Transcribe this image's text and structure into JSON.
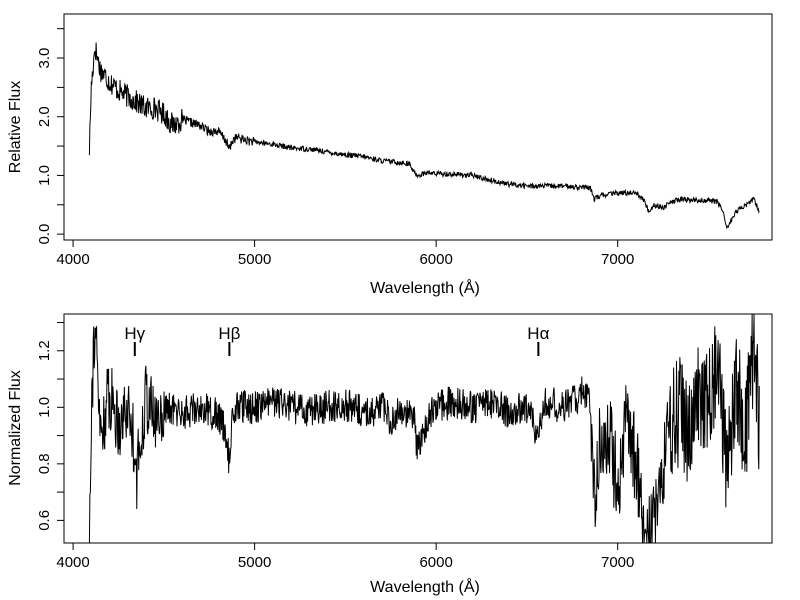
{
  "chart_data": [
    {
      "type": "line",
      "title": "",
      "xlabel": "Wavelength (Å)",
      "ylabel": "Relative Flux",
      "xlim": [
        3950,
        7850
      ],
      "ylim": [
        -0.1,
        3.75
      ],
      "xticks": [
        4000,
        5000,
        6000,
        7000
      ],
      "xtick_labels": [
        "4000",
        "5000",
        "6000",
        "7000"
      ],
      "yticks": [
        0,
        1,
        2,
        3
      ],
      "ytick_labels": [
        "0.0",
        "1.0",
        "2.0",
        "3.0"
      ],
      "grid": false,
      "legend": "none",
      "series": [
        {
          "color": "#000000",
          "x": [
            4090,
            4100,
            4120,
            4150,
            4200,
            4250,
            4300,
            4350,
            4400,
            4450,
            4500,
            4550,
            4600,
            4650,
            4700,
            4750,
            4800,
            4840,
            4860,
            4880,
            4900,
            4950,
            5000,
            5100,
            5200,
            5300,
            5400,
            5500,
            5600,
            5700,
            5800,
            5850,
            5880,
            5900,
            5950,
            6000,
            6100,
            6200,
            6300,
            6400,
            6500,
            6600,
            6700,
            6800,
            6850,
            6870,
            6900,
            6950,
            7000,
            7050,
            7100,
            7150,
            7170,
            7200,
            7250,
            7300,
            7350,
            7400,
            7450,
            7500,
            7550,
            7580,
            7600,
            7620,
            7650,
            7700,
            7750,
            7780
          ],
          "y": [
            1.45,
            2.5,
            3.2,
            2.8,
            2.6,
            2.45,
            2.35,
            2.25,
            2.15,
            2.15,
            2.05,
            1.85,
            1.95,
            1.9,
            1.85,
            1.75,
            1.75,
            1.6,
            1.45,
            1.6,
            1.65,
            1.6,
            1.57,
            1.53,
            1.47,
            1.45,
            1.4,
            1.35,
            1.32,
            1.25,
            1.22,
            1.2,
            1.05,
            1.0,
            1.05,
            1.03,
            1.02,
            1.0,
            0.92,
            0.85,
            0.82,
            0.82,
            0.82,
            0.8,
            0.78,
            0.6,
            0.65,
            0.68,
            0.7,
            0.7,
            0.72,
            0.55,
            0.38,
            0.5,
            0.45,
            0.55,
            0.6,
            0.58,
            0.57,
            0.58,
            0.55,
            0.4,
            0.1,
            0.2,
            0.38,
            0.48,
            0.6,
            0.38
          ]
        }
      ]
    },
    {
      "type": "line",
      "title": "",
      "xlabel": "Wavelength (Å)",
      "ylabel": "Normalized Flux",
      "xlim": [
        3950,
        7850
      ],
      "ylim": [
        0.52,
        1.33
      ],
      "xticks": [
        4000,
        5000,
        6000,
        7000
      ],
      "xtick_labels": [
        "4000",
        "5000",
        "6000",
        "7000"
      ],
      "yticks": [
        0.6,
        0.8,
        1.0,
        1.2
      ],
      "ytick_labels": [
        "0.6",
        "0.8",
        "1.0",
        "1.2"
      ],
      "grid": false,
      "legend": "none",
      "annotations": [
        {
          "text": "Hγ",
          "x": 4340
        },
        {
          "text": "Hβ",
          "x": 4861
        },
        {
          "text": "Hα",
          "x": 6563
        }
      ],
      "series": [
        {
          "color": "#000000",
          "x": [
            4090,
            4100,
            4120,
            4150,
            4200,
            4250,
            4300,
            4340,
            4350,
            4400,
            4450,
            4500,
            4600,
            4700,
            4800,
            4840,
            4861,
            4880,
            4900,
            5000,
            5100,
            5200,
            5300,
            5400,
            5500,
            5600,
            5700,
            5750,
            5800,
            5850,
            5880,
            5893,
            5910,
            5950,
            6000,
            6100,
            6200,
            6300,
            6400,
            6500,
            6563,
            6600,
            6700,
            6800,
            6850,
            6870,
            6900,
            6950,
            7000,
            7050,
            7100,
            7150,
            7200,
            7250,
            7300,
            7350,
            7400,
            7450,
            7500,
            7550,
            7600,
            7650,
            7700,
            7750,
            7780
          ],
          "y": [
            0.57,
            1.0,
            1.3,
            0.9,
            1.05,
            0.95,
            1.0,
            0.88,
            0.75,
            1.05,
            0.95,
            1.0,
            0.98,
            1.0,
            0.97,
            0.92,
            0.8,
            0.98,
            1.0,
            1.0,
            1.02,
            1.0,
            0.99,
            1.0,
            1.01,
            0.98,
            1.0,
            0.95,
            1.0,
            0.97,
            0.95,
            0.85,
            0.88,
            0.95,
            1.0,
            1.02,
            1.0,
            1.02,
            0.98,
            1.0,
            0.9,
            1.02,
            1.0,
            1.05,
            1.02,
            0.7,
            0.85,
            0.9,
            0.75,
            0.95,
            0.8,
            0.55,
            0.6,
            0.8,
            0.95,
            1.0,
            0.9,
            1.05,
            1.0,
            1.15,
            0.75,
            1.1,
            0.9,
            1.2,
            0.95
          ]
        }
      ]
    }
  ]
}
